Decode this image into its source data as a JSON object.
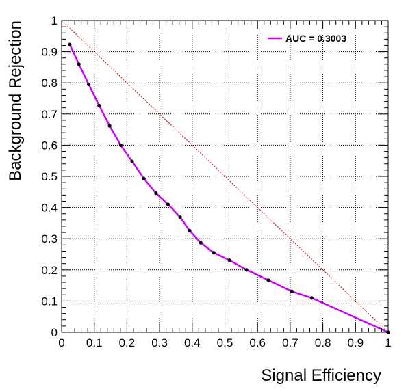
{
  "chart_data": {
    "type": "line",
    "title": "",
    "xlabel": "Signal Efficiency",
    "ylabel": "Background Rejection",
    "xlim": [
      0,
      1
    ],
    "ylim": [
      0,
      1
    ],
    "x_ticks": [
      "0",
      "0.1",
      "0.2",
      "0.3",
      "0.4",
      "0.5",
      "0.6",
      "0.7",
      "0.8",
      "0.9",
      "1"
    ],
    "y_ticks": [
      "0",
      "0.1",
      "0.2",
      "0.3",
      "0.4",
      "0.5",
      "0.6",
      "0.7",
      "0.8",
      "0.9",
      "1"
    ],
    "grid": true,
    "legend": {
      "position": "top-right",
      "entries": [
        "AUC = 0.3003"
      ]
    },
    "series": [
      {
        "name": "AUC = 0.3003",
        "color": "#cc00ff",
        "x": [
          0.025,
          0.053,
          0.083,
          0.115,
          0.147,
          0.181,
          0.216,
          0.252,
          0.289,
          0.326,
          0.363,
          0.392,
          0.426,
          0.466,
          0.514,
          0.567,
          0.633,
          0.705,
          0.766,
          1.0
        ],
        "y": [
          0.923,
          0.86,
          0.795,
          0.727,
          0.662,
          0.6,
          0.548,
          0.493,
          0.446,
          0.41,
          0.369,
          0.326,
          0.287,
          0.255,
          0.231,
          0.2,
          0.167,
          0.131,
          0.11,
          0.0
        ]
      }
    ],
    "reference_line": {
      "x": [
        0,
        1
      ],
      "y": [
        1,
        0
      ],
      "color": "#cc0000"
    }
  }
}
